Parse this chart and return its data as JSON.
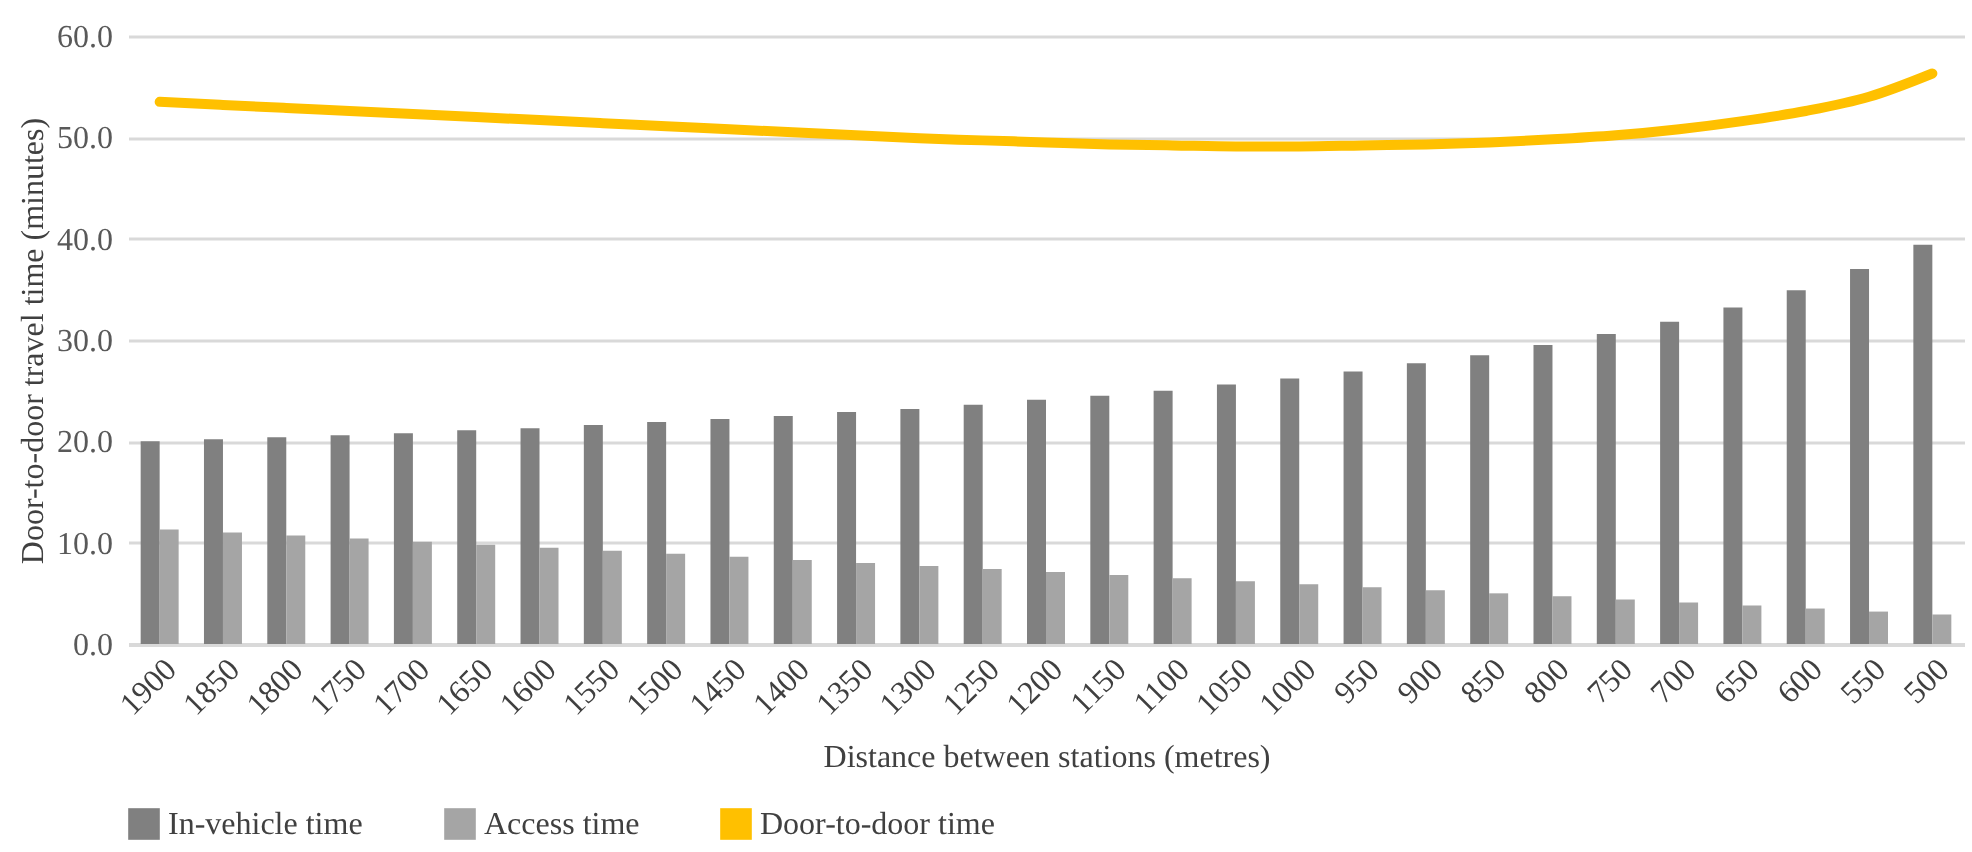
{
  "chart_data": {
    "type": "bar",
    "xlabel": "Distance between stations (metres)",
    "ylabel": "Door-to-door travel time (minutes)",
    "categories": [
      "1900",
      "1850",
      "1800",
      "1750",
      "1700",
      "1650",
      "1600",
      "1550",
      "1500",
      "1450",
      "1400",
      "1350",
      "1300",
      "1250",
      "1200",
      "1150",
      "1100",
      "1050",
      "1000",
      "950",
      "900",
      "850",
      "800",
      "750",
      "700",
      "650",
      "600",
      "550",
      "500"
    ],
    "series": [
      {
        "name": "In-vehicle time",
        "color": "#808080",
        "values": [
          20.0,
          20.2,
          20.4,
          20.6,
          20.8,
          21.1,
          21.3,
          21.6,
          21.9,
          22.2,
          22.5,
          22.9,
          23.2,
          23.6,
          24.1,
          24.5,
          25.0,
          25.6,
          26.2,
          26.9,
          27.7,
          28.5,
          29.5,
          30.6,
          31.8,
          33.2,
          34.9,
          37.0,
          39.4
        ]
      },
      {
        "name": "Access time",
        "color": "#a5a5a5",
        "values": [
          11.3,
          11.0,
          10.7,
          10.4,
          10.1,
          9.8,
          9.5,
          9.2,
          8.9,
          8.6,
          8.3,
          8.0,
          7.7,
          7.4,
          7.1,
          6.8,
          6.5,
          6.2,
          5.9,
          5.6,
          5.3,
          5.0,
          4.7,
          4.4,
          4.1,
          3.8,
          3.5,
          3.2,
          2.9
        ]
      },
      {
        "name": "Door-to-door time",
        "type": "line",
        "color": "#ffc000",
        "values": [
          53.5,
          53.2,
          52.9,
          52.6,
          52.3,
          52.0,
          51.7,
          51.4,
          51.1,
          50.8,
          50.5,
          50.2,
          49.9,
          49.7,
          49.5,
          49.3,
          49.2,
          49.1,
          49.1,
          49.2,
          49.3,
          49.5,
          49.8,
          50.2,
          50.8,
          51.6,
          52.6,
          54.0,
          56.3
        ]
      }
    ],
    "ylim": [
      0,
      60
    ],
    "yticks": [
      {
        "value": 0,
        "label": "0.0"
      },
      {
        "value": 10,
        "label": "10.0"
      },
      {
        "value": 20,
        "label": "20.0"
      },
      {
        "value": 30,
        "label": "30.0"
      },
      {
        "value": 40,
        "label": "40.0"
      },
      {
        "value": 50,
        "label": "50.0"
      },
      {
        "value": 60,
        "label": "60.0"
      }
    ],
    "grid": "y",
    "legend": "bottom",
    "marker": "none",
    "line_style": "solid"
  }
}
